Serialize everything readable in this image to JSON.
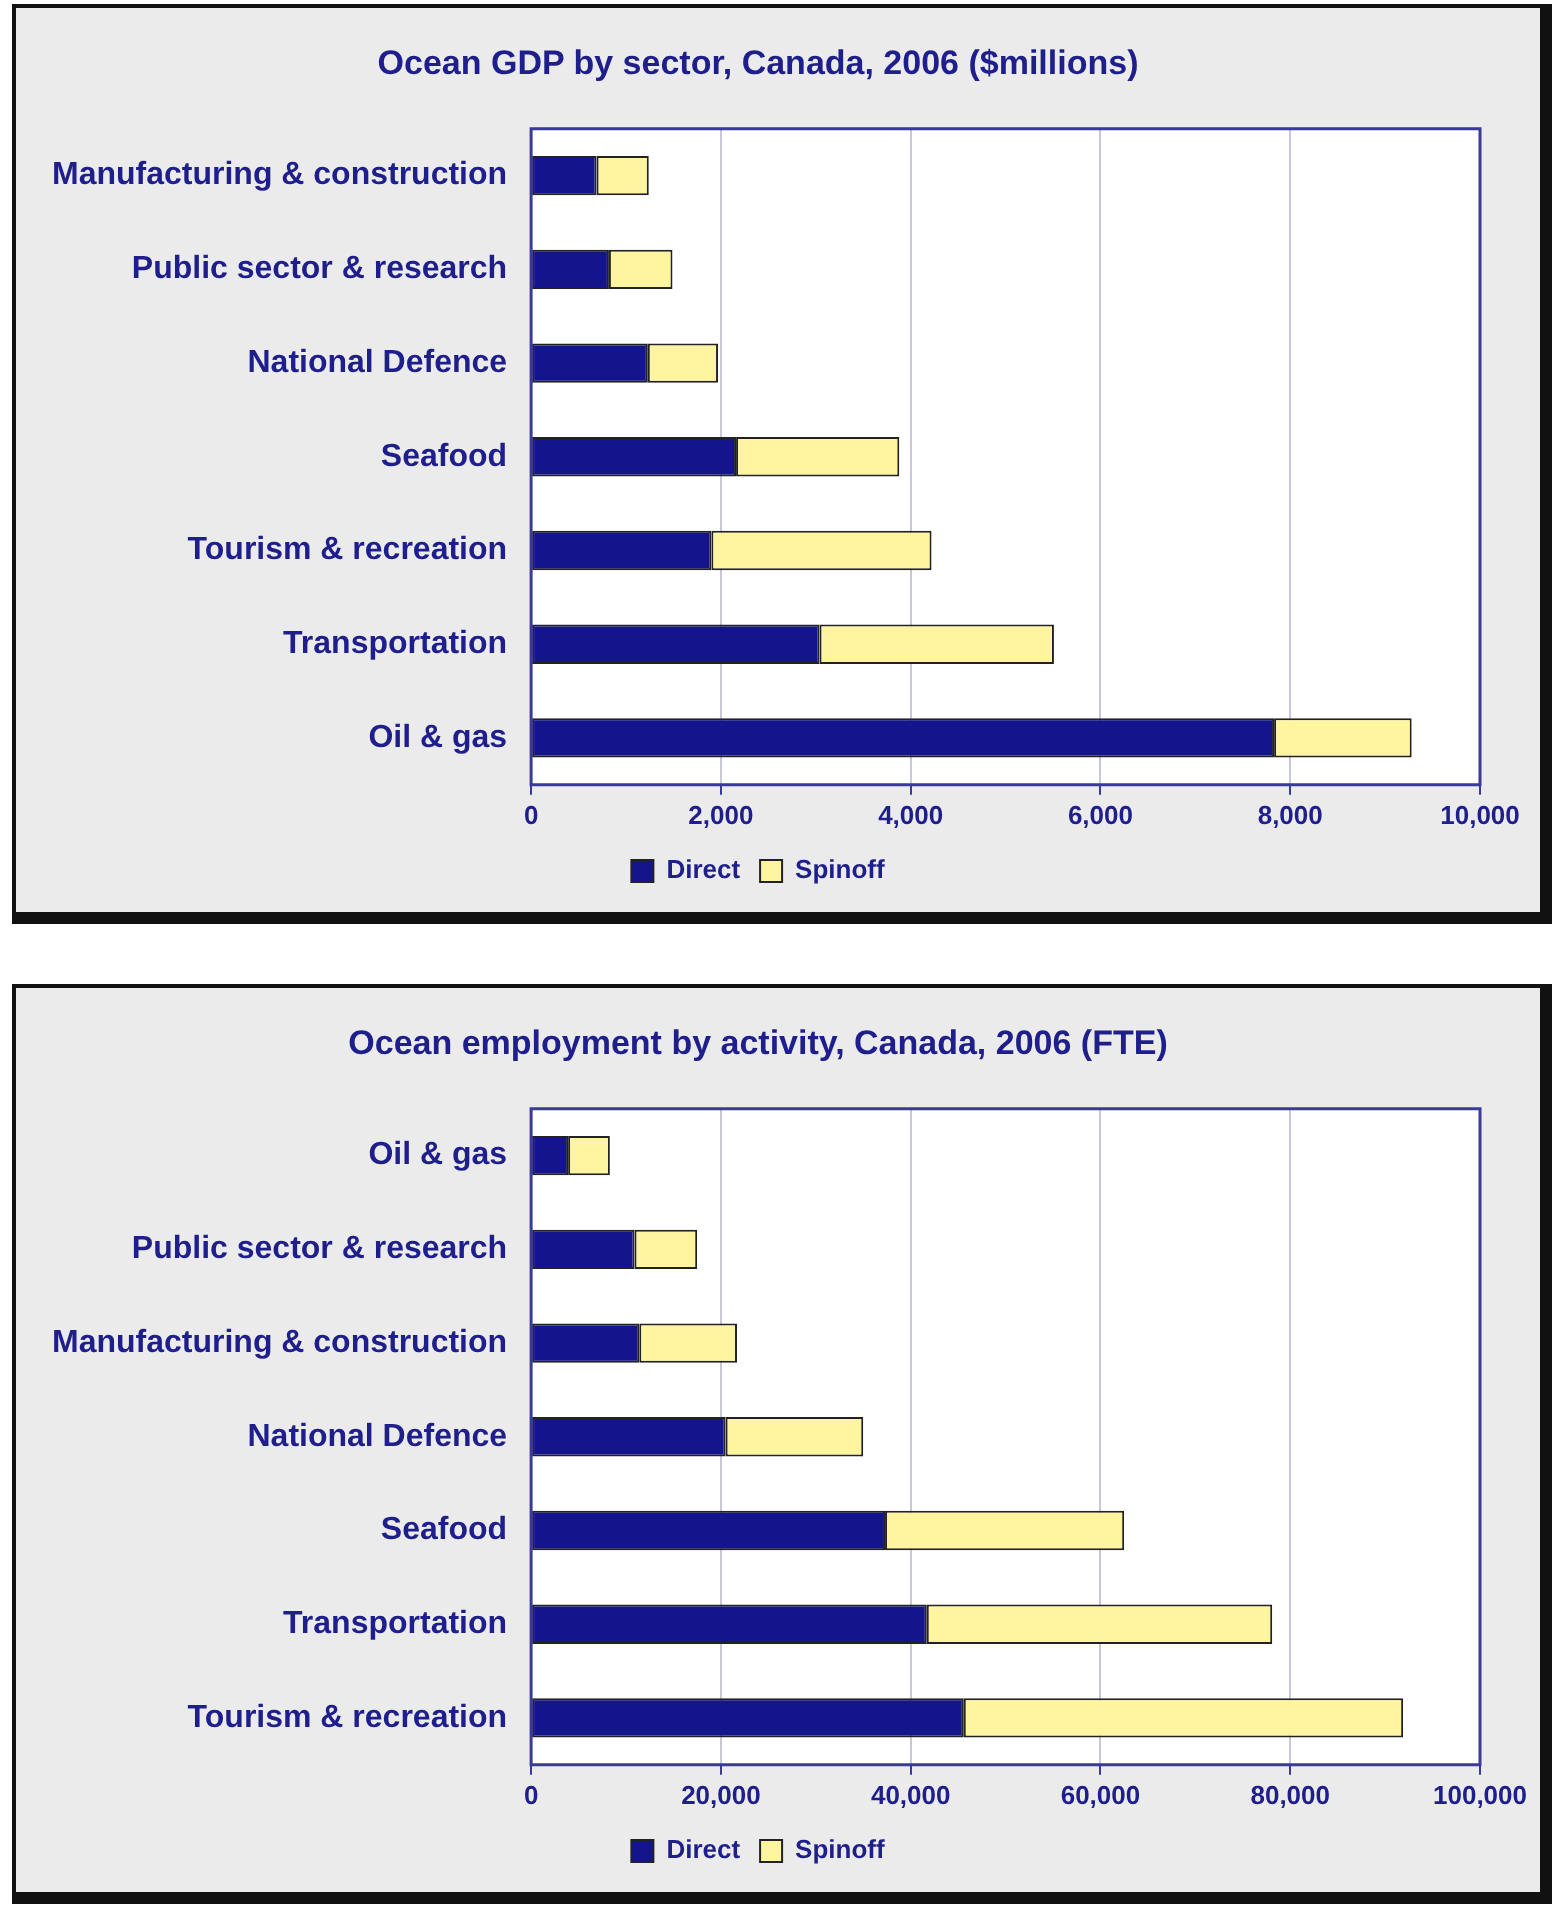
{
  "chart_data": [
    {
      "type": "bar",
      "orientation": "horizontal",
      "stacked": true,
      "title": "Ocean GDP by sector, Canada, 2006 ($millions)",
      "categories": [
        "Manufacturing & construction",
        "Public sector & research",
        "National Defence",
        "Seafood",
        "Tourism & recreation",
        "Transportation",
        "Oil & gas"
      ],
      "series": [
        {
          "name": "Direct",
          "color": "#14148c",
          "values": [
            690,
            820,
            1230,
            2160,
            1900,
            3040,
            7830
          ]
        },
        {
          "name": "Spinoff",
          "color": "#fff5a0",
          "values": [
            550,
            670,
            740,
            1720,
            2320,
            2470,
            1450
          ]
        }
      ],
      "xlim": [
        0,
        10000
      ],
      "xticks": [
        0,
        {
          "value": 2000,
          "label": "2,000"
        },
        {
          "value": 4000,
          "label": "4,000"
        },
        {
          "value": 6000,
          "label": "6,000"
        },
        {
          "value": 8000,
          "label": "8,000"
        },
        {
          "value": 10000,
          "label": "10,000"
        }
      ],
      "grid": "x",
      "legend": "bottom"
    },
    {
      "type": "bar",
      "orientation": "horizontal",
      "stacked": true,
      "title": "Ocean employment by activity, Canada, 2006 (FTE)",
      "categories": [
        "Oil & gas",
        "Public sector & research",
        "Manufacturing & construction",
        "National Defence",
        "Seafood",
        "Transportation",
        "Tourism & recreation"
      ],
      "series": [
        {
          "name": "Direct",
          "color": "#14148c",
          "values": [
            3900,
            10900,
            11400,
            20500,
            37300,
            41700,
            45600
          ]
        },
        {
          "name": "Spinoff",
          "color": "#fff5a0",
          "values": [
            4400,
            6600,
            10300,
            14500,
            25200,
            36400,
            46300
          ]
        }
      ],
      "xlim": [
        0,
        100000
      ],
      "xticks": [
        0,
        {
          "value": 20000,
          "label": "20,000"
        },
        {
          "value": 40000,
          "label": "40,000"
        },
        {
          "value": 60000,
          "label": "60,000"
        },
        {
          "value": 80000,
          "label": "80,000"
        },
        {
          "value": 100000,
          "label": "100,000"
        }
      ],
      "grid": "x",
      "legend": "bottom"
    }
  ]
}
